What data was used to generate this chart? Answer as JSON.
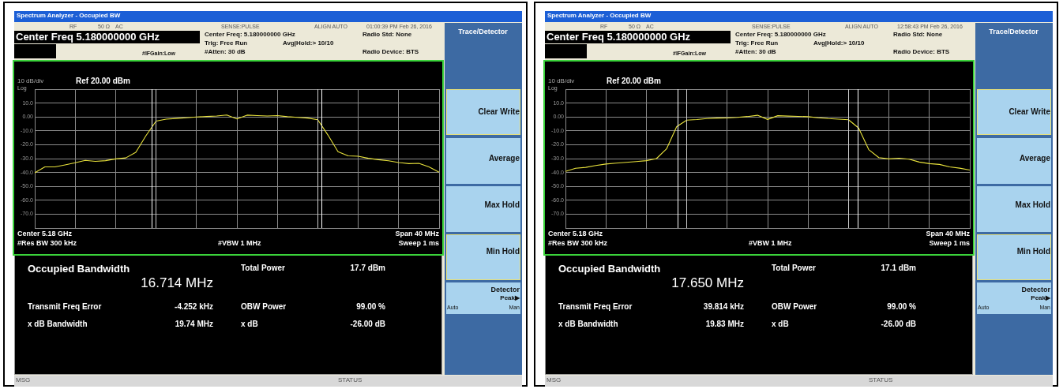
{
  "chart_data": [
    {
      "type": "line",
      "title": "Spectrum Analyzer - Occupied BW",
      "categories": [
        null,
        null,
        null,
        null,
        null,
        null,
        null,
        null,
        null,
        null,
        null,
        null,
        null,
        null,
        null,
        null,
        null,
        null,
        null,
        null,
        null,
        null,
        null,
        null,
        null,
        null,
        null,
        null,
        null,
        null,
        null,
        null,
        null,
        null,
        null,
        null,
        null,
        null,
        null,
        null,
        null
      ],
      "series": [
        {
          "color": "#e8e23c",
          "values": [
            -40.2,
            -36,
            -36,
            -34.5,
            -33,
            -31.3,
            -32,
            -31.5,
            -30.2,
            -29.5,
            -25.5,
            -13.5,
            -3,
            -1.6,
            -1.1,
            -0.6,
            0,
            0.3,
            0.7,
            1.4,
            -1.4,
            1.3,
            1,
            0.7,
            1,
            0.2,
            -0.3,
            -0.8,
            -2,
            -13,
            -25,
            -28,
            -28.3,
            -29.8,
            -30.8,
            -31.6,
            -32.8,
            -33.6,
            -33.4,
            -36,
            -39.8
          ]
        }
      ],
      "ylim": [
        -80,
        20
      ],
      "yticks": [
        {
          "value": 20,
          "label": null
        },
        {
          "value": 10,
          "label": "10.0"
        },
        {
          "value": 0,
          "label": "0.00"
        },
        {
          "value": -10,
          "label": "-10.0"
        },
        {
          "value": -20,
          "label": "-20.0"
        },
        {
          "value": -30,
          "label": "-30.0"
        },
        {
          "value": -40,
          "label": "-40.0"
        },
        {
          "value": -50,
          "label": "-50.0"
        },
        {
          "value": -60,
          "label": "-60.0"
        },
        {
          "value": -70,
          "label": "-70.0"
        },
        {
          "value": -80,
          "label": null
        }
      ],
      "tick_labels": "y",
      "grid": true,
      "legend": false,
      "annotations": [
        "RF",
        "50 Ω",
        "AC",
        "SENSE:PULSE",
        "ALIGN AUTO",
        "01:00:39 PM Feb 26, 2016",
        "Center Freq 5.180000000 GHz",
        "#IFGain:Low",
        "Center Freq: 5.180000000 GHz",
        "Trig: Free Run",
        "Avg|Hold:> 10/10",
        "#Atten: 30 dB",
        "Radio Std: None",
        "Radio Device: BTS",
        "10 dB/div",
        "Ref 20.00 dBm",
        "Log",
        "Center 5.18 GHz",
        "#Res BW 300 kHz",
        "#VBW 1 MHz",
        "Span 40 MHz",
        "Sweep 1 ms",
        "Occupied Bandwidth",
        "16.714 MHz",
        "Transmit Freq Error",
        "-4.252 kHz",
        "x dB Bandwidth",
        "19.74 MHz",
        "Total Power",
        "17.7 dBm",
        "OBW Power",
        "99.00 %",
        "x dB",
        "-26.00 dB",
        "Trace/Detector",
        "Clear Write",
        "Average",
        "Max Hold",
        "Min Hold",
        "Detector",
        "Peak▶",
        "Auto",
        "Man",
        "MSG",
        "STATUS"
      ]
    },
    {
      "type": "line",
      "title": "Spectrum Analyzer - Occupied BW",
      "categories": [
        null,
        null,
        null,
        null,
        null,
        null,
        null,
        null,
        null,
        null,
        null,
        null,
        null,
        null,
        null,
        null,
        null,
        null,
        null,
        null,
        null,
        null,
        null,
        null,
        null,
        null,
        null,
        null,
        null,
        null,
        null,
        null,
        null,
        null,
        null,
        null,
        null,
        null,
        null,
        null,
        null
      ],
      "series": [
        {
          "color": "#e8e23c",
          "values": [
            -39.2,
            -37,
            -36.3,
            -35,
            -33.9,
            -33.3,
            -32.7,
            -32.1,
            -31.5,
            -30,
            -23,
            -7,
            -2.3,
            -1.9,
            -1.2,
            -0.8,
            -0.7,
            -0.3,
            0.3,
            1.2,
            -1.8,
            0.9,
            0.6,
            0.4,
            0.2,
            -0.6,
            -1.2,
            -1.6,
            -2,
            -8,
            -23.5,
            -29.3,
            -30.2,
            -29.7,
            -30.4,
            -32.5,
            -33.6,
            -34.2,
            -36,
            -36.9,
            -38.2
          ]
        }
      ],
      "ylim": [
        -80,
        20
      ],
      "yticks": [
        {
          "value": 20,
          "label": null
        },
        {
          "value": 10,
          "label": "10.0"
        },
        {
          "value": 0,
          "label": "0.00"
        },
        {
          "value": -10,
          "label": "-10.0"
        },
        {
          "value": -20,
          "label": "-20.0"
        },
        {
          "value": -30,
          "label": "-30.0"
        },
        {
          "value": -40,
          "label": "-40.0"
        },
        {
          "value": -50,
          "label": "-50.0"
        },
        {
          "value": -60,
          "label": "-60.0"
        },
        {
          "value": -70,
          "label": "-70.0"
        },
        {
          "value": -80,
          "label": null
        }
      ],
      "tick_labels": "y",
      "grid": true,
      "legend": false,
      "annotations": [
        "RF",
        "50 Ω",
        "AC",
        "SENSE:PULSE",
        "ALIGN AUTO",
        "12:58:43 PM Feb 26, 2016",
        "Center Freq 5.180000000 GHz",
        "#IFGain:Low",
        "Center Freq: 5.180000000 GHz",
        "Trig: Free Run",
        "Avg|Hold:> 10/10",
        "#Atten: 30 dB",
        "Radio Std: None",
        "Radio Device: BTS",
        "10 dB/div",
        "Ref 20.00 dBm",
        "Log",
        "Center 5.18 GHz",
        "#Res BW 300 kHz",
        "#VBW 1 MHz",
        "Span 40 MHz",
        "Sweep 1 ms",
        "Occupied Bandwidth",
        "17.650 MHz",
        "Transmit Freq Error",
        "39.814 kHz",
        "x dB Bandwidth",
        "19.83 MHz",
        "Total Power",
        "17.1 dBm",
        "OBW Power",
        "99.00 %",
        "x dB",
        "-26.00 dB",
        "Trace/Detector",
        "Clear Write",
        "Average",
        "Max Hold",
        "Min Hold",
        "Detector",
        "Peak▶",
        "Auto",
        "Man",
        "MSG",
        "STATUS"
      ]
    }
  ]
}
